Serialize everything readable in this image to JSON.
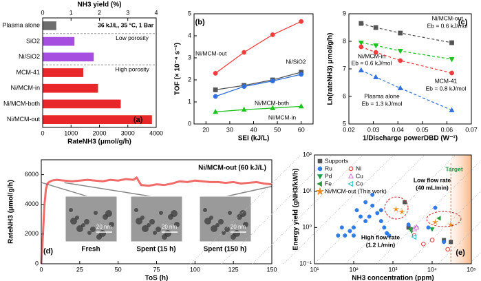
{
  "chart_data": [
    {
      "type": "barh",
      "label": "(a)",
      "categories": [
        "Plasma alone",
        "SiO2",
        "Ni/SiO2",
        "MCM-41",
        "Ni/MCM-in",
        "Ni/MCM-both",
        "Ni/MCM-out"
      ],
      "values": [
        480,
        1120,
        1800,
        1430,
        1950,
        2750,
        3850
      ],
      "colors": [
        "#6e6e6e",
        "#a54ee0",
        "#a54ee0",
        "#e8272b",
        "#e8272b",
        "#e8272b",
        "#e8272b"
      ],
      "xlim": [
        0,
        4000
      ],
      "xticks": [
        0,
        1000,
        2000,
        3000,
        4000
      ],
      "xlabel": "RateNH3 (μmol/g/h)",
      "x2lim": [
        0,
        4
      ],
      "x2ticks": [
        0,
        1,
        2,
        3,
        4
      ],
      "x2label": "NH3 yield (%)",
      "annotations": [
        "36 kJ/L, 35 °C, 1 Bar",
        "Low porosity",
        "High porosity"
      ]
    },
    {
      "type": "line",
      "label": "(b)",
      "x": [
        24,
        36,
        48,
        60
      ],
      "series": [
        {
          "name": "Ni/MCM-out",
          "color": "#f03c3c",
          "marker": "circle",
          "values": [
            2.3,
            3.25,
            4.05,
            4.65
          ]
        },
        {
          "name": "Ni/SiO2",
          "color": "#555555",
          "marker": "square",
          "values": [
            1.55,
            1.75,
            2.0,
            2.35
          ]
        },
        {
          "name": "Ni/MCM-both",
          "color": "#2f6fe0",
          "marker": "circle",
          "values": [
            1.25,
            1.7,
            1.95,
            2.25
          ]
        },
        {
          "name": "Ni/MCM-in",
          "color": "#1ec21e",
          "marker": "triangle",
          "values": [
            0.55,
            0.65,
            0.72,
            0.8
          ]
        }
      ],
      "xlim": [
        15,
        65
      ],
      "xticks": [
        20,
        30,
        40,
        50,
        60
      ],
      "ylim": [
        0,
        5
      ],
      "yticks": [
        0,
        1,
        2,
        3,
        4,
        5
      ],
      "xlabel": "SEI (kJ/L)",
      "ylabel": "TOF (× 10⁻⁴ s⁻¹)"
    },
    {
      "type": "line",
      "label": "(c)",
      "line_style": "dashed",
      "x": [
        0.025,
        0.031,
        0.041,
        0.062
      ],
      "series": [
        {
          "name": "Ni/MCM-out",
          "color": "#555555",
          "marker": "square",
          "values": [
            8.65,
            8.5,
            8.3,
            7.95
          ]
        },
        {
          "name": "Ni/MCM-in",
          "color": "#1ec21e",
          "marker": "triangle-down",
          "values": [
            7.95,
            7.85,
            7.65,
            7.35
          ]
        },
        {
          "name": "MCM-41",
          "color": "#f03c3c",
          "marker": "circle",
          "values": [
            7.8,
            7.6,
            7.3,
            6.85
          ]
        },
        {
          "name": "Plasma alone",
          "color": "#2f6fe0",
          "marker": "triangle",
          "values": [
            6.95,
            6.7,
            6.3,
            5.5
          ]
        }
      ],
      "annotations": [
        "Eb = 0.6 kJ/mol",
        "Eb = 0.6 kJ/mol",
        "Eb = 0.8 kJ/mol",
        "Eb = 1.3 kJ/mol"
      ],
      "xlim": [
        0.02,
        0.07
      ],
      "xticks": [
        0.02,
        0.03,
        0.04,
        0.05,
        0.06,
        0.07
      ],
      "ylim": [
        5,
        9
      ],
      "yticks": [
        5,
        6,
        7,
        8,
        9
      ],
      "xlabel": "1/Discharge powerDBD (W⁻¹)",
      "ylabel": "Ln(rateNH3) μmol/g/h)"
    },
    {
      "type": "line",
      "label": "(d)",
      "title": "Ni/MCM-out (60 kJ/L)",
      "x": [
        0,
        1,
        2,
        3,
        4,
        5,
        7,
        10,
        15,
        20,
        25,
        30,
        35,
        40,
        45,
        50,
        55,
        60,
        62,
        65,
        70,
        75,
        80,
        85,
        90,
        95,
        100,
        105,
        110,
        115,
        120,
        125,
        130,
        135,
        140,
        145,
        150
      ],
      "series": [
        {
          "name": "Ni/MCM-out",
          "color": "#ec3b35",
          "values": [
            0,
            1800,
            3900,
            5000,
            5400,
            5500,
            5600,
            5650,
            5600,
            5550,
            5600,
            5650,
            5600,
            5550,
            5650,
            5600,
            5700,
            5650,
            5800,
            5300,
            5250,
            5350,
            5300,
            5400,
            5550,
            5500,
            5600,
            5550,
            5500,
            5500,
            5450,
            5500,
            5400,
            5450,
            5500,
            5400,
            5350
          ]
        }
      ],
      "insets": [
        "Fresh",
        "Spent (15 h)",
        "Spent (150 h)"
      ],
      "scale_bar": "20 nm",
      "xlim": [
        0,
        150
      ],
      "xticks": [
        0,
        25,
        50,
        75,
        100,
        125,
        150
      ],
      "ylim": [
        0,
        7000
      ],
      "yticks": [
        0,
        2000,
        4000,
        6000
      ],
      "xlabel": "ToS (h)",
      "ylabel": "RateNH3 (μmol/g/h)"
    },
    {
      "type": "scatter",
      "label": "(e)",
      "xscale": "log",
      "yscale": "log",
      "legend": "top-left",
      "target_line": 30000,
      "series": [
        {
          "name": "Supports",
          "color": "#555555",
          "marker": "square",
          "x": [
            2000,
            2500,
            20000,
            30000
          ],
          "values": [
            5.0,
            1.0,
            0.45,
            0.4
          ]
        },
        {
          "name": "Ru",
          "color": "#2f7be8",
          "marker": "circle",
          "x": [
            40,
            50,
            60,
            80,
            100,
            100,
            120,
            150,
            200,
            200,
            250,
            300,
            300,
            400,
            500,
            500,
            600,
            700,
            800,
            2500,
            3000,
            4000,
            8000,
            12000,
            20000
          ],
          "values": [
            0.6,
            1.0,
            0.6,
            0.8,
            1.0,
            0.6,
            3.0,
            2.0,
            1.5,
            5.0,
            2.0,
            4.0,
            8.0,
            2.5,
            3.0,
            1.5,
            1.0,
            0.7,
            0.6,
            1.2,
            0.9,
            1.0,
            1.0,
            3.5,
            0.4
          ]
        },
        {
          "name": "Pd",
          "color": "#1aa04a",
          "marker": "triangle-down",
          "x": [
            3000,
            10000
          ],
          "values": [
            0.8,
            0.9
          ]
        },
        {
          "name": "Fe",
          "color": "#2a9a3a",
          "marker": "triangle-left",
          "x": [
            2800,
            15000
          ],
          "values": [
            0.9,
            1.8
          ]
        },
        {
          "name": "Ni",
          "color": "#e03030",
          "marker": "circle",
          "filled": false,
          "x": [
            3500,
            6000,
            10000,
            25000
          ],
          "values": [
            0.6,
            0.35,
            0.45,
            0.25
          ]
        },
        {
          "name": "Cu",
          "color": "#d070d0",
          "marker": "triangle",
          "filled": false,
          "x": [
            3500,
            4000
          ],
          "values": [
            0.9,
            1.0
          ]
        },
        {
          "name": "Co",
          "color": "#20c0c0",
          "marker": "triangle-left",
          "filled": false,
          "x": [
            3500
          ],
          "values": [
            0.55
          ]
        },
        {
          "name": "Ni/MCM-out (This work)",
          "color": "#f08a1c",
          "marker": "star",
          "x": [
            1200,
            1700,
            12000,
            30000
          ],
          "values": [
            3.2,
            2.7,
            1.4,
            1.2
          ]
        }
      ],
      "annotations": [
        "Target",
        "Low flow rate",
        "(40 mL/min)",
        "High flow rate",
        "(1.2 L/min)"
      ],
      "xlim": [
        10,
        100000
      ],
      "xticks": [
        {
          "value": 10,
          "label": "10¹"
        },
        {
          "value": 100,
          "label": "10²"
        },
        {
          "value": 1000,
          "label": "10³"
        },
        {
          "value": 10000,
          "label": "10⁴"
        },
        {
          "value": 100000,
          "label": "10⁵"
        }
      ],
      "ylim": [
        0.1,
        100
      ],
      "yticks": [
        {
          "value": 0.1,
          "label": "10⁻¹"
        },
        {
          "value": 1,
          "label": "10⁰"
        },
        {
          "value": 10,
          "label": "10¹"
        },
        {
          "value": 100,
          "label": "10²"
        }
      ],
      "xlabel": "NH3 concentration (ppm)",
      "ylabel": "Energy yield (gNH3/kWh)"
    }
  ]
}
